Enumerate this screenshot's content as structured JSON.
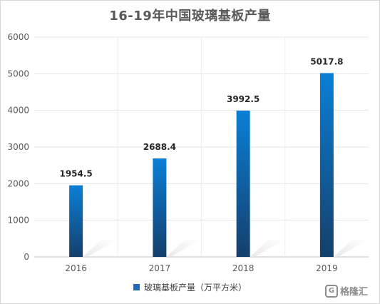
{
  "chart_data": {
    "type": "bar",
    "title": "16-19年中国玻璃基板产量",
    "categories": [
      "2016",
      "2017",
      "2018",
      "2019"
    ],
    "series": [
      {
        "name": "玻璃基板产量（万平方米）",
        "values": [
          1954.5,
          2688.4,
          3992.5,
          5017.8
        ]
      }
    ],
    "data_labels": [
      "1954.5",
      "2688.4",
      "3992.5",
      "5017.8"
    ],
    "ylim": [
      0,
      6000
    ],
    "yticks": [
      "0",
      "1000",
      "2000",
      "3000",
      "4000",
      "5000",
      "6000"
    ],
    "grid": true,
    "legend_position": "bottom",
    "bar_color_top": "#0a7fd6",
    "bar_color_bottom": "#153f6b"
  },
  "watermark": {
    "logo_glyph": "G",
    "text": "格隆汇"
  }
}
